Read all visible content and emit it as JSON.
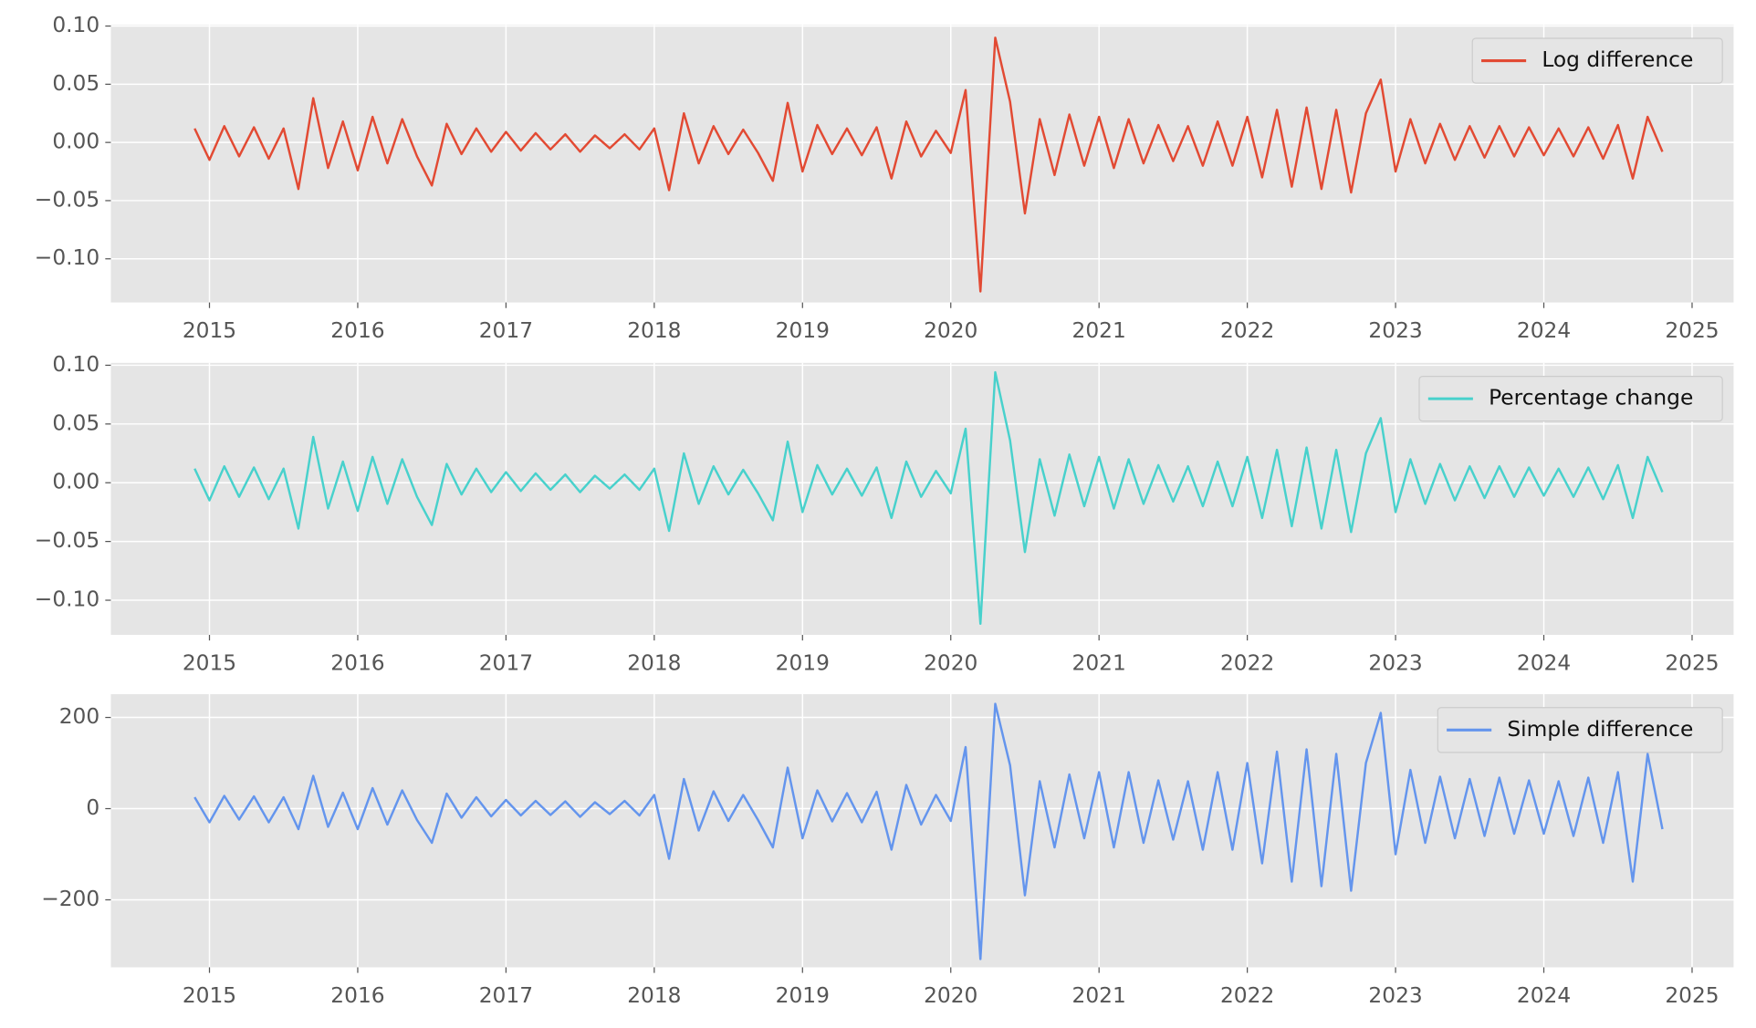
{
  "chart_data": [
    {
      "type": "line",
      "x": [
        2014.9,
        2015.0,
        2015.1,
        2015.2,
        2015.3,
        2015.4,
        2015.5,
        2015.6,
        2015.7,
        2015.8,
        2015.9,
        2016.0,
        2016.1,
        2016.2,
        2016.3,
        2016.4,
        2016.5,
        2016.6,
        2016.7,
        2016.8,
        2016.9,
        2017.0,
        2017.1,
        2017.2,
        2017.3,
        2017.4,
        2017.5,
        2017.6,
        2017.7,
        2017.8,
        2017.9,
        2018.0,
        2018.1,
        2018.2,
        2018.3,
        2018.4,
        2018.5,
        2018.6,
        2018.7,
        2018.8,
        2018.9,
        2019.0,
        2019.1,
        2019.2,
        2019.3,
        2019.4,
        2019.5,
        2019.6,
        2019.7,
        2019.8,
        2019.9,
        2020.0,
        2020.1,
        2020.2,
        2020.3,
        2020.4,
        2020.5,
        2020.6,
        2020.7,
        2020.8,
        2020.9,
        2021.0,
        2021.1,
        2021.2,
        2021.3,
        2021.4,
        2021.5,
        2021.6,
        2021.7,
        2021.8,
        2021.9,
        2022.0,
        2022.1,
        2022.2,
        2022.3,
        2022.4,
        2022.5,
        2022.6,
        2022.7,
        2022.8,
        2022.9,
        2023.0,
        2023.1,
        2023.2,
        2023.3,
        2023.4,
        2023.5,
        2023.6,
        2023.7,
        2023.8,
        2023.9,
        2024.0,
        2024.1,
        2024.2,
        2024.3,
        2024.4,
        2024.5,
        2024.6,
        2024.7,
        2024.8
      ],
      "xlim": [
        2014.335,
        2025.28
      ],
      "xticks": [
        2015,
        2016,
        2017,
        2018,
        2019,
        2020,
        2021,
        2022,
        2023,
        2024,
        2025
      ],
      "ylim": [
        -0.1375,
        0.101
      ],
      "yticks": [
        {
          "value": -0.1,
          "label": "−0.10"
        },
        {
          "value": -0.05,
          "label": "−0.05"
        },
        {
          "value": 0,
          "label": "0.00"
        },
        {
          "value": 0.05,
          "label": "0.05"
        },
        {
          "value": 0.1,
          "label": "0.10"
        }
      ],
      "grid": true,
      "legend": "upper right",
      "series": [
        {
          "name": "Log difference",
          "color": "#e24a33",
          "values": [
            0.012,
            -0.015,
            0.014,
            -0.012,
            0.013,
            -0.014,
            0.012,
            -0.04,
            0.038,
            -0.022,
            0.018,
            -0.024,
            0.022,
            -0.018,
            0.02,
            -0.012,
            -0.037,
            0.016,
            -0.01,
            0.012,
            -0.008,
            0.009,
            -0.007,
            0.008,
            -0.006,
            0.007,
            -0.008,
            0.006,
            -0.005,
            0.007,
            -0.006,
            0.012,
            -0.041,
            0.025,
            -0.018,
            0.014,
            -0.01,
            0.011,
            -0.009,
            -0.033,
            0.034,
            -0.025,
            0.015,
            -0.01,
            0.012,
            -0.011,
            0.013,
            -0.031,
            0.018,
            -0.012,
            0.01,
            -0.009,
            0.045,
            -0.128,
            0.09,
            0.035,
            -0.061,
            0.02,
            -0.028,
            0.024,
            -0.02,
            0.022,
            -0.022,
            0.02,
            -0.018,
            0.015,
            -0.016,
            0.014,
            -0.02,
            0.018,
            -0.02,
            0.022,
            -0.03,
            0.028,
            -0.038,
            0.03,
            -0.04,
            0.028,
            -0.043,
            0.025,
            0.054,
            -0.025,
            0.02,
            -0.018,
            0.016,
            -0.015,
            0.014,
            -0.013,
            0.014,
            -0.012,
            0.013,
            -0.011,
            0.012,
            -0.012,
            0.013,
            -0.014,
            0.015,
            -0.031,
            0.022,
            -0.008
          ]
        }
      ]
    },
    {
      "type": "line",
      "x": [
        2014.9,
        2015.0,
        2015.1,
        2015.2,
        2015.3,
        2015.4,
        2015.5,
        2015.6,
        2015.7,
        2015.8,
        2015.9,
        2016.0,
        2016.1,
        2016.2,
        2016.3,
        2016.4,
        2016.5,
        2016.6,
        2016.7,
        2016.8,
        2016.9,
        2017.0,
        2017.1,
        2017.2,
        2017.3,
        2017.4,
        2017.5,
        2017.6,
        2017.7,
        2017.8,
        2017.9,
        2018.0,
        2018.1,
        2018.2,
        2018.3,
        2018.4,
        2018.5,
        2018.6,
        2018.7,
        2018.8,
        2018.9,
        2019.0,
        2019.1,
        2019.2,
        2019.3,
        2019.4,
        2019.5,
        2019.6,
        2019.7,
        2019.8,
        2019.9,
        2020.0,
        2020.1,
        2020.2,
        2020.3,
        2020.4,
        2020.5,
        2020.6,
        2020.7,
        2020.8,
        2020.9,
        2021.0,
        2021.1,
        2021.2,
        2021.3,
        2021.4,
        2021.5,
        2021.6,
        2021.7,
        2021.8,
        2021.9,
        2022.0,
        2022.1,
        2022.2,
        2022.3,
        2022.4,
        2022.5,
        2022.6,
        2022.7,
        2022.8,
        2022.9,
        2023.0,
        2023.1,
        2023.2,
        2023.3,
        2023.4,
        2023.5,
        2023.6,
        2023.7,
        2023.8,
        2023.9,
        2024.0,
        2024.1,
        2024.2,
        2024.3,
        2024.4,
        2024.5,
        2024.6,
        2024.7,
        2024.8
      ],
      "xlim": [
        2014.335,
        2025.28
      ],
      "xticks": [
        2015,
        2016,
        2017,
        2018,
        2019,
        2020,
        2021,
        2022,
        2023,
        2024,
        2025
      ],
      "ylim": [
        -0.1295,
        0.102
      ],
      "yticks": [
        {
          "value": -0.1,
          "label": "−0.10"
        },
        {
          "value": -0.05,
          "label": "−0.05"
        },
        {
          "value": 0,
          "label": "0.00"
        },
        {
          "value": 0.05,
          "label": "0.05"
        },
        {
          "value": 0.1,
          "label": "0.10"
        }
      ],
      "grid": true,
      "legend": "upper right",
      "series": [
        {
          "name": "Percentage change",
          "color": "#48d1cc",
          "values": [
            0.012,
            -0.015,
            0.014,
            -0.012,
            0.013,
            -0.014,
            0.012,
            -0.039,
            0.039,
            -0.022,
            0.018,
            -0.024,
            0.022,
            -0.018,
            0.02,
            -0.012,
            -0.036,
            0.016,
            -0.01,
            0.012,
            -0.008,
            0.009,
            -0.007,
            0.008,
            -0.006,
            0.007,
            -0.008,
            0.006,
            -0.005,
            0.007,
            -0.006,
            0.012,
            -0.041,
            0.025,
            -0.018,
            0.014,
            -0.01,
            0.011,
            -0.009,
            -0.032,
            0.035,
            -0.025,
            0.015,
            -0.01,
            0.012,
            -0.011,
            0.013,
            -0.03,
            0.018,
            -0.012,
            0.01,
            -0.009,
            0.046,
            -0.12,
            0.094,
            0.036,
            -0.059,
            0.02,
            -0.028,
            0.024,
            -0.02,
            0.022,
            -0.022,
            0.02,
            -0.018,
            0.015,
            -0.016,
            0.014,
            -0.02,
            0.018,
            -0.02,
            0.022,
            -0.03,
            0.028,
            -0.037,
            0.03,
            -0.039,
            0.028,
            -0.042,
            0.025,
            0.055,
            -0.025,
            0.02,
            -0.018,
            0.016,
            -0.015,
            0.014,
            -0.013,
            0.014,
            -0.012,
            0.013,
            -0.011,
            0.012,
            -0.012,
            0.013,
            -0.014,
            0.015,
            -0.03,
            0.022,
            -0.008
          ]
        }
      ]
    },
    {
      "type": "line",
      "x": [
        2014.9,
        2015.0,
        2015.1,
        2015.2,
        2015.3,
        2015.4,
        2015.5,
        2015.6,
        2015.7,
        2015.8,
        2015.9,
        2016.0,
        2016.1,
        2016.2,
        2016.3,
        2016.4,
        2016.5,
        2016.6,
        2016.7,
        2016.8,
        2016.9,
        2017.0,
        2017.1,
        2017.2,
        2017.3,
        2017.4,
        2017.5,
        2017.6,
        2017.7,
        2017.8,
        2017.9,
        2018.0,
        2018.1,
        2018.2,
        2018.3,
        2018.4,
        2018.5,
        2018.6,
        2018.7,
        2018.8,
        2018.9,
        2019.0,
        2019.1,
        2019.2,
        2019.3,
        2019.4,
        2019.5,
        2019.6,
        2019.7,
        2019.8,
        2019.9,
        2020.0,
        2020.1,
        2020.2,
        2020.3,
        2020.4,
        2020.5,
        2020.6,
        2020.7,
        2020.8,
        2020.9,
        2021.0,
        2021.1,
        2021.2,
        2021.3,
        2021.4,
        2021.5,
        2021.6,
        2021.7,
        2021.8,
        2021.9,
        2022.0,
        2022.1,
        2022.2,
        2022.3,
        2022.4,
        2022.5,
        2022.6,
        2022.7,
        2022.8,
        2022.9,
        2023.0,
        2023.1,
        2023.2,
        2023.3,
        2023.4,
        2023.5,
        2023.6,
        2023.7,
        2023.8,
        2023.9,
        2024.0,
        2024.1,
        2024.2,
        2024.3,
        2024.4,
        2024.5,
        2024.6,
        2024.7,
        2024.8
      ],
      "xlim": [
        2014.335,
        2025.28
      ],
      "xticks": [
        2015,
        2016,
        2017,
        2018,
        2019,
        2020,
        2021,
        2022,
        2023,
        2024,
        2025
      ],
      "ylim": [
        -348,
        251
      ],
      "yticks": [
        {
          "value": -200,
          "label": "−200"
        },
        0,
        200
      ],
      "grid": true,
      "legend": "upper right",
      "series": [
        {
          "name": "Simple difference",
          "color": "#6495ed",
          "values": [
            25,
            -30,
            28,
            -24,
            27,
            -30,
            25,
            -45,
            72,
            -40,
            35,
            -45,
            45,
            -35,
            40,
            -25,
            -75,
            33,
            -20,
            25,
            -17,
            19,
            -15,
            17,
            -14,
            16,
            -18,
            14,
            -12,
            17,
            -15,
            30,
            -110,
            65,
            -48,
            38,
            -27,
            30,
            -25,
            -85,
            90,
            -65,
            40,
            -28,
            34,
            -30,
            37,
            -90,
            52,
            -35,
            30,
            -27,
            135,
            -330,
            230,
            95,
            -190,
            60,
            -85,
            75,
            -65,
            80,
            -85,
            80,
            -75,
            62,
            -68,
            60,
            -90,
            80,
            -90,
            100,
            -120,
            125,
            -160,
            130,
            -170,
            120,
            -180,
            100,
            210,
            -100,
            85,
            -75,
            70,
            -65,
            65,
            -60,
            68,
            -55,
            62,
            -55,
            60,
            -60,
            68,
            -75,
            80,
            -160,
            120,
            -45
          ]
        }
      ]
    }
  ]
}
